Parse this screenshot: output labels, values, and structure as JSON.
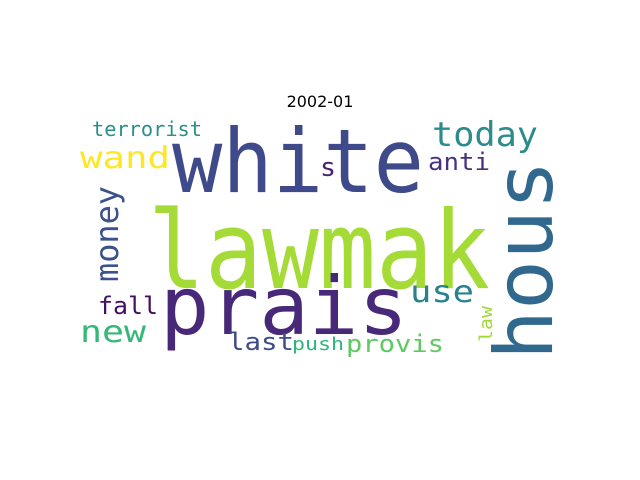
{
  "title": "2002-01",
  "words": [
    {
      "text": "lawmak",
      "color": "#a5db36"
    },
    {
      "text": "white",
      "color": "#3e4a89"
    },
    {
      "text": "prais",
      "color": "#482878"
    },
    {
      "text": "hous",
      "color": "#31688e"
    },
    {
      "text": "today",
      "color": "#2c8c8a"
    },
    {
      "text": "wand",
      "color": "#fde725"
    },
    {
      "text": "terrorist",
      "color": "#2a8f8a"
    },
    {
      "text": "anti",
      "color": "#46327e"
    },
    {
      "text": "s",
      "color": "#481f70"
    },
    {
      "text": "money",
      "color": "#3b528b"
    },
    {
      "text": "use",
      "color": "#26828e"
    },
    {
      "text": "fall",
      "color": "#440f5e"
    },
    {
      "text": "new",
      "color": "#35b779"
    },
    {
      "text": "law",
      "color": "#a0da39"
    },
    {
      "text": "last",
      "color": "#3e4a89"
    },
    {
      "text": "push",
      "color": "#2fb47c"
    },
    {
      "text": "provis",
      "color": "#5ec962"
    }
  ]
}
